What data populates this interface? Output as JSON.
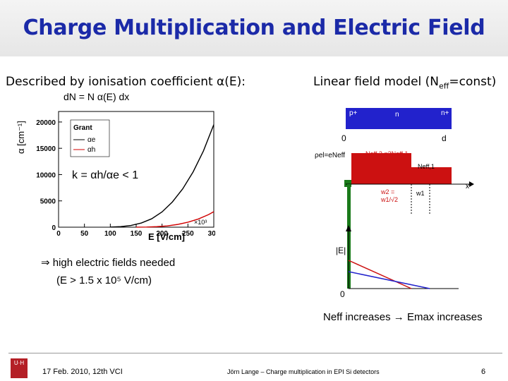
{
  "slide": {
    "title": "Charge Multiplication and Electric Field",
    "left_heading": "Described by ionisation coefficient α(E):",
    "right_heading_pre": "Linear field model (N",
    "right_heading_sub": "eff",
    "right_heading_post": "=const)",
    "formula": "dN = N α(E) dx",
    "k_relation": "k = αh/αe < 1",
    "conclusion_line1": "⇒ high electric fields needed",
    "conclusion_line2": "(E > 1.5 x 10⁵ V/cm)",
    "bottom_statement": "Neff increases → Emax increases"
  },
  "chart_data": {
    "type": "line",
    "xlabel": "E [V/cm]",
    "ylabel": "α [cm⁻¹]",
    "x_ticks": [
      "0",
      "50",
      "100",
      "150",
      "200",
      "250",
      "300"
    ],
    "x_scale_note": "×10³",
    "y_ticks": [
      "0",
      "5000",
      "10000",
      "15000",
      "20000"
    ],
    "xlim": [
      0,
      300
    ],
    "ylim": [
      0,
      22000
    ],
    "legend_title": "Grant",
    "series": [
      {
        "name": "αe",
        "color": "#000000",
        "x": [
          100,
          120,
          140,
          160,
          180,
          200,
          220,
          240,
          260,
          280,
          300
        ],
        "y": [
          20,
          100,
          320,
          800,
          1600,
          2900,
          4800,
          7300,
          10500,
          14500,
          19500
        ]
      },
      {
        "name": "αh",
        "color": "#d00000",
        "x": [
          150,
          170,
          190,
          210,
          230,
          250,
          270,
          290,
          300
        ],
        "y": [
          5,
          30,
          100,
          250,
          520,
          950,
          1550,
          2400,
          2950
        ]
      }
    ]
  },
  "diagram": {
    "p_label": "p+",
    "n_label": "n",
    "nplus_label": "n+",
    "x0_label": "0",
    "d_label": "d",
    "rho_label": "ρel=eNeff",
    "neff2_label": "Neff,2 =2Neff,1",
    "neff1_label": "Neff,1",
    "x_label": "x",
    "w2_label_top": "w2 =",
    "w2_label_bottom": "w1/√2",
    "w1_label": "w1",
    "e_label": "|E|",
    "e0_label": "0",
    "colors": {
      "blue": "#2222cc",
      "red": "#cc1111",
      "green": "#1a7a1a"
    }
  },
  "footer": {
    "logo": "U·H",
    "date": "17 Feb. 2010,  12th VCI",
    "center": "Jörn Lange – Charge multiplication in EPI Si detectors",
    "page": "6"
  }
}
